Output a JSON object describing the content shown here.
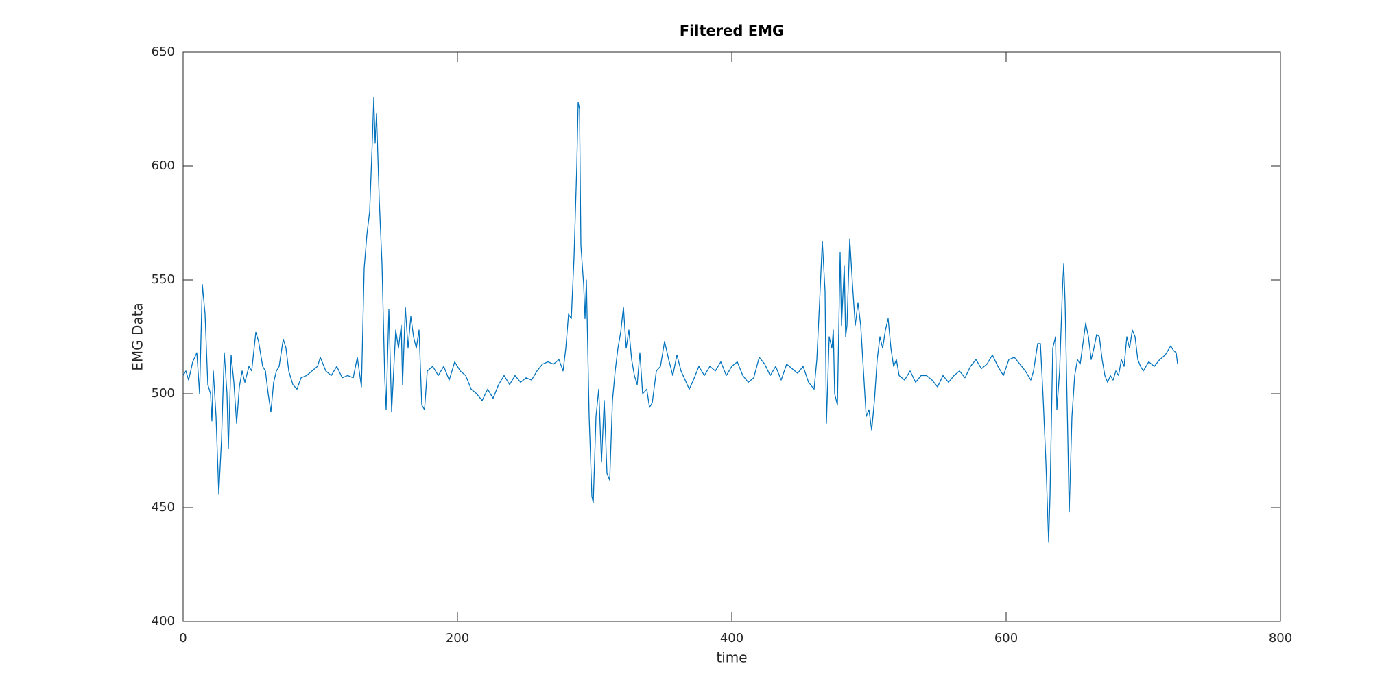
{
  "chart_data": {
    "type": "line",
    "title": "Filtered EMG",
    "x_label": "time",
    "y_label": "EMG Data",
    "xlim": [
      0,
      800
    ],
    "xticks": [
      0,
      200,
      400,
      600,
      800
    ],
    "ylim": [
      400,
      650
    ],
    "yticks": [
      400,
      450,
      500,
      550,
      600,
      650
    ],
    "series": [
      {
        "color": "#0072bd",
        "x": [
          0,
          2,
          4,
          7,
          10,
          12,
          14,
          16,
          18,
          20,
          21,
          22,
          24,
          26,
          28,
          30,
          32,
          33,
          35,
          37,
          39,
          41,
          43,
          45,
          48,
          50,
          53,
          55,
          58,
          60,
          62,
          64,
          66,
          68,
          70,
          73,
          75,
          77,
          80,
          83,
          86,
          90,
          94,
          98,
          100,
          104,
          108,
          112,
          116,
          120,
          124,
          127,
          130,
          132,
          134,
          136,
          138,
          139,
          140,
          141,
          143,
          145,
          147,
          148,
          150,
          152,
          155,
          157,
          159,
          160,
          162,
          164,
          166,
          168,
          170,
          172,
          174,
          176,
          178,
          182,
          186,
          190,
          194,
          198,
          202,
          206,
          210,
          214,
          218,
          222,
          226,
          230,
          234,
          238,
          242,
          246,
          250,
          254,
          258,
          262,
          266,
          270,
          274,
          277,
          279,
          281,
          283,
          285,
          287,
          288,
          289,
          290,
          292,
          293,
          294,
          296,
          298,
          299,
          301,
          303,
          305,
          307,
          309,
          311,
          313,
          315,
          317,
          319,
          321,
          323,
          325,
          327,
          329,
          331,
          333,
          335,
          338,
          340,
          342,
          345,
          348,
          351,
          354,
          357,
          360,
          363,
          366,
          369,
          372,
          376,
          380,
          384,
          388,
          392,
          396,
          400,
          404,
          408,
          412,
          416,
          420,
          424,
          428,
          432,
          436,
          440,
          444,
          448,
          452,
          456,
          460,
          462,
          464,
          466,
          468,
          469,
          471,
          473,
          474,
          475,
          477,
          479,
          480,
          482,
          483,
          484,
          486,
          488,
          490,
          492,
          494,
          496,
          498,
          500,
          502,
          504,
          506,
          508,
          510,
          512,
          514,
          516,
          518,
          520,
          522,
          526,
          530,
          534,
          538,
          542,
          546,
          550,
          554,
          558,
          562,
          566,
          570,
          574,
          578,
          582,
          586,
          590,
          594,
          598,
          602,
          606,
          610,
          614,
          618,
          620,
          623,
          625,
          627,
          629,
          631,
          632,
          634,
          636,
          637,
          639,
          641,
          642,
          643,
          645,
          646,
          648,
          650,
          652,
          654,
          656,
          658,
          660,
          662,
          664,
          666,
          668,
          670,
          672,
          674,
          676,
          678,
          680,
          682,
          684,
          686,
          688,
          690,
          692,
          694,
          696,
          698,
          700,
          704,
          708,
          712,
          716,
          720,
          722,
          724,
          725
        ],
        "values": [
          508,
          510,
          506,
          514,
          518,
          500,
          548,
          535,
          504,
          500,
          488,
          510,
          490,
          456,
          480,
          518,
          500,
          476,
          517,
          505,
          487,
          503,
          510,
          505,
          512,
          510,
          527,
          523,
          512,
          510,
          500,
          492,
          505,
          510,
          512,
          524,
          520,
          510,
          504,
          502,
          507,
          508,
          510,
          512,
          516,
          510,
          508,
          512,
          507,
          508,
          507,
          516,
          503,
          555,
          570,
          580,
          612,
          630,
          610,
          623,
          585,
          557,
          507,
          493,
          537,
          492,
          528,
          520,
          530,
          504,
          538,
          520,
          534,
          525,
          520,
          528,
          495,
          493,
          510,
          512,
          508,
          512,
          506,
          514,
          510,
          508,
          502,
          500,
          497,
          502,
          498,
          504,
          508,
          504,
          508,
          505,
          507,
          506,
          510,
          513,
          514,
          513,
          515,
          510,
          520,
          535,
          533,
          560,
          600,
          628,
          625,
          565,
          548,
          533,
          550,
          490,
          455,
          452,
          490,
          502,
          470,
          497,
          465,
          462,
          497,
          510,
          520,
          527,
          538,
          520,
          528,
          515,
          508,
          504,
          518,
          500,
          502,
          494,
          496,
          510,
          512,
          523,
          515,
          508,
          517,
          510,
          506,
          502,
          506,
          512,
          508,
          512,
          510,
          514,
          508,
          512,
          514,
          508,
          505,
          507,
          516,
          513,
          508,
          512,
          506,
          513,
          511,
          509,
          512,
          505,
          502,
          515,
          540,
          567,
          545,
          487,
          525,
          520,
          528,
          500,
          495,
          562,
          530,
          556,
          525,
          530,
          568,
          548,
          530,
          540,
          530,
          510,
          490,
          493,
          484,
          497,
          515,
          525,
          520,
          528,
          533,
          520,
          512,
          515,
          508,
          506,
          510,
          505,
          508,
          508,
          506,
          503,
          508,
          505,
          508,
          510,
          507,
          512,
          515,
          511,
          513,
          517,
          512,
          508,
          515,
          516,
          513,
          510,
          506,
          510,
          522,
          522,
          498,
          470,
          435,
          455,
          520,
          525,
          493,
          510,
          545,
          557,
          540,
          480,
          448,
          490,
          508,
          515,
          513,
          522,
          531,
          525,
          515,
          520,
          526,
          525,
          515,
          508,
          505,
          508,
          506,
          510,
          508,
          515,
          512,
          525,
          520,
          528,
          525,
          515,
          512,
          510,
          514,
          512,
          515,
          517,
          521,
          519,
          518,
          513
        ]
      }
    ]
  }
}
